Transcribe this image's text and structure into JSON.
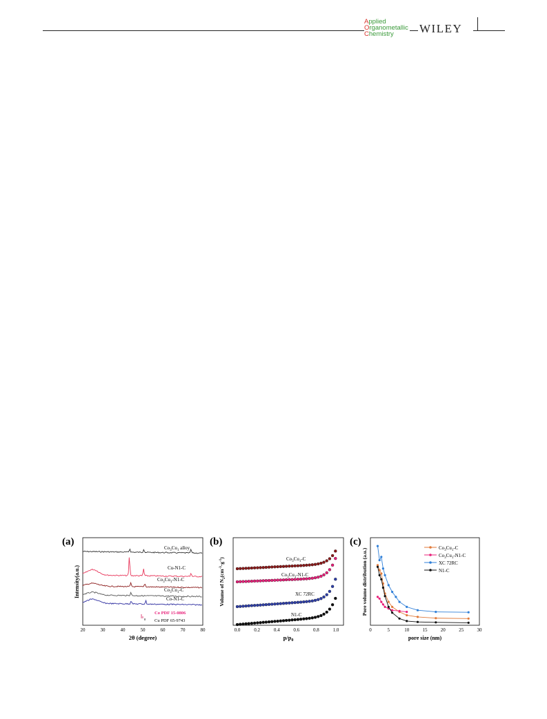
{
  "header": {
    "journal_lines": [
      {
        "initial": "A",
        "rest": "pplied"
      },
      {
        "initial": "O",
        "rest": "rganometallic"
      },
      {
        "initial": "C",
        "rest": "hemistry"
      }
    ],
    "publisher": "WILEY",
    "colors": {
      "initial": "#d9332b",
      "text": "#3a9a3a"
    }
  },
  "figure": {
    "panel_a": {
      "letter": "(a)",
      "ylabel": "Intensity(a.u.)",
      "xlabel": "2θ (degree)",
      "xticks": [
        "20",
        "30",
        "40",
        "50",
        "60",
        "70",
        "80"
      ],
      "trace_labels": [
        "Co3Cu1 alloy",
        "Cu-N1-C",
        "Co3Cu1-N1-C",
        "Co3Cu1-C",
        "Co-N1-C"
      ],
      "pdf_labels": [
        "Co PDF 15-0806",
        "Cu PDF 65-9743"
      ]
    },
    "panel_b": {
      "letter": "(b)",
      "ylabel": "Volume of N2(cm-3·g-1)",
      "xlabel": "p/p0",
      "xticks": [
        "0.0",
        "0.2",
        "0.4",
        "0.6",
        "0.8",
        "1.0"
      ],
      "curve_labels": [
        "Co3Cu1-C",
        "Co3Cu1-N1-C",
        "XC 72RC",
        "N1-C"
      ]
    },
    "panel_c": {
      "letter": "(c)",
      "ylabel": "Pore volume distribution (a.u.)",
      "xlabel": "pore size (nm)",
      "xticks": [
        "0",
        "5",
        "10",
        "15",
        "20",
        "25",
        "30"
      ],
      "legend": [
        "Co3Cu1-C",
        "Co3Cu1-N1-C",
        "XC 72RC",
        "N1-C"
      ]
    },
    "series_colors": {
      "Co3Cu1-C": "#8b1a1a",
      "Co3Cu1-N1-C": "#e8207a",
      "XC 72RC": "#2f3fa8",
      "N1-C": "#111111",
      "Cu-N1-C": "#e8365a",
      "Co-N1-C": "#2e2ea0",
      "Co3Cu1 alloy": "#333333",
      "c_Co3Cu1-C": "#e07a3a",
      "c_XC 72RC": "#2f7fd8"
    }
  },
  "chart_data": [
    {
      "type": "line",
      "panel": "a",
      "xlabel": "2θ (degree)",
      "ylabel": "Intensity(a.u.)",
      "xlim": [
        20,
        80
      ],
      "series": [
        {
          "name": "Co3Cu1 alloy",
          "peaks_2theta": [
            43.5,
            50.5,
            74.1
          ]
        },
        {
          "name": "Cu-N1-C",
          "peaks_2theta": [
            24,
            43.3,
            50.4,
            74.1
          ]
        },
        {
          "name": "Co3Cu1-N1-C",
          "peaks_2theta": [
            24,
            44,
            51
          ]
        },
        {
          "name": "Co3Cu1-C",
          "peaks_2theta": [
            24,
            44
          ]
        },
        {
          "name": "Co-N1-C",
          "peaks_2theta": [
            24,
            44.2,
            51.5
          ]
        }
      ],
      "reference_patterns": [
        {
          "name": "Co PDF 15-0806",
          "lines_2theta": [
            44.2,
            51.5
          ]
        },
        {
          "name": "Cu PDF 65-9743",
          "lines_2theta": [
            43.3,
            50.4,
            74.1
          ]
        }
      ]
    },
    {
      "type": "scatter",
      "panel": "b",
      "xlabel": "p/p0",
      "ylabel": "Volume of N2(cm-3·g-1)",
      "xlim": [
        0.0,
        1.0
      ],
      "series": [
        {
          "name": "Co3Cu1-C"
        },
        {
          "name": "Co3Cu1-N1-C"
        },
        {
          "name": "XC 72RC"
        },
        {
          "name": "N1-C"
        }
      ]
    },
    {
      "type": "line",
      "panel": "c",
      "xlabel": "pore size (nm)",
      "ylabel": "Pore volume distribution (a.u.)",
      "xlim": [
        0,
        30
      ],
      "series": [
        {
          "name": "Co3Cu1-C",
          "x": [
            2,
            2.5,
            3,
            3.5,
            4,
            5,
            6,
            8,
            10,
            13,
            18,
            27
          ],
          "y": [
            0.72,
            0.66,
            0.62,
            0.5,
            0.38,
            0.28,
            0.22,
            0.16,
            0.12,
            0.1,
            0.085,
            0.08
          ]
        },
        {
          "name": "Co3Cu1-N1-C",
          "x": [
            2,
            2.5,
            3,
            3.5,
            4,
            5,
            6,
            8,
            10
          ],
          "y": [
            0.34,
            0.32,
            0.28,
            0.25,
            0.22,
            0.2,
            0.18,
            0.17,
            0.16
          ]
        },
        {
          "name": "XC 72RC",
          "x": [
            2,
            2.5,
            3,
            3.5,
            4,
            5,
            6,
            7,
            8,
            10,
            13,
            18,
            27
          ],
          "y": [
            0.95,
            0.78,
            0.82,
            0.68,
            0.6,
            0.48,
            0.4,
            0.34,
            0.28,
            0.22,
            0.18,
            0.16,
            0.155
          ]
        },
        {
          "name": "N1-C",
          "x": [
            2,
            2.5,
            3,
            3.5,
            4,
            5,
            6,
            8,
            10,
            13,
            18,
            27
          ],
          "y": [
            0.7,
            0.6,
            0.55,
            0.45,
            0.35,
            0.22,
            0.15,
            0.08,
            0.05,
            0.04,
            0.035,
            0.03
          ]
        }
      ]
    }
  ]
}
